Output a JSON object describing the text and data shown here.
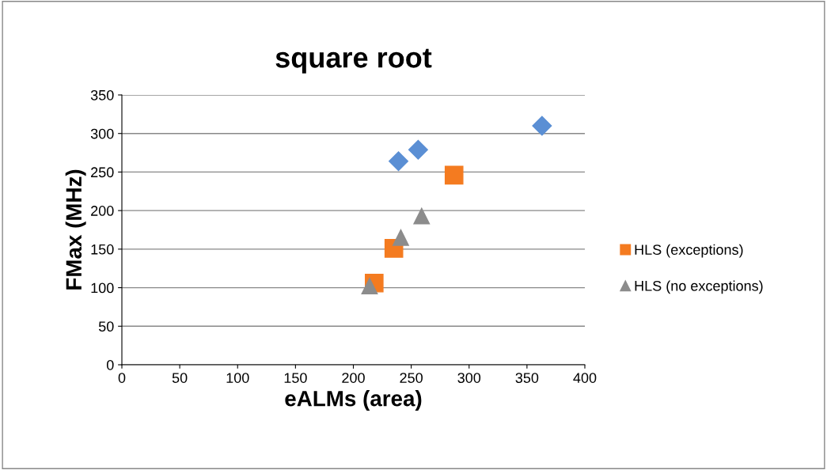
{
  "chart_data": {
    "type": "scatter",
    "title": "square root",
    "xlabel": "eALMs (area)",
    "ylabel": "FMax (MHz)",
    "xlim": [
      0,
      400
    ],
    "xticks": [
      0,
      50,
      100,
      150,
      200,
      250,
      300,
      350,
      400
    ],
    "ylim": [
      0,
      350
    ],
    "yticks": [
      0,
      50,
      100,
      150,
      200,
      250,
      300,
      350
    ],
    "grid": "y",
    "legend": "right",
    "series": [
      {
        "color": "#5b8fd4",
        "marker": "diamond",
        "x": [
          239,
          256,
          363
        ],
        "values": [
          264,
          279,
          310
        ]
      },
      {
        "name": "HLS (exceptions)",
        "color": "#f47b20",
        "marker": "square",
        "x": [
          287,
          235,
          218
        ],
        "values": [
          246,
          151,
          106
        ]
      },
      {
        "name": "HLS (no exceptions)",
        "color": "#8c8c8c",
        "marker": "triangle",
        "x": [
          241,
          259,
          214
        ],
        "values": [
          165,
          193,
          102
        ]
      }
    ]
  }
}
